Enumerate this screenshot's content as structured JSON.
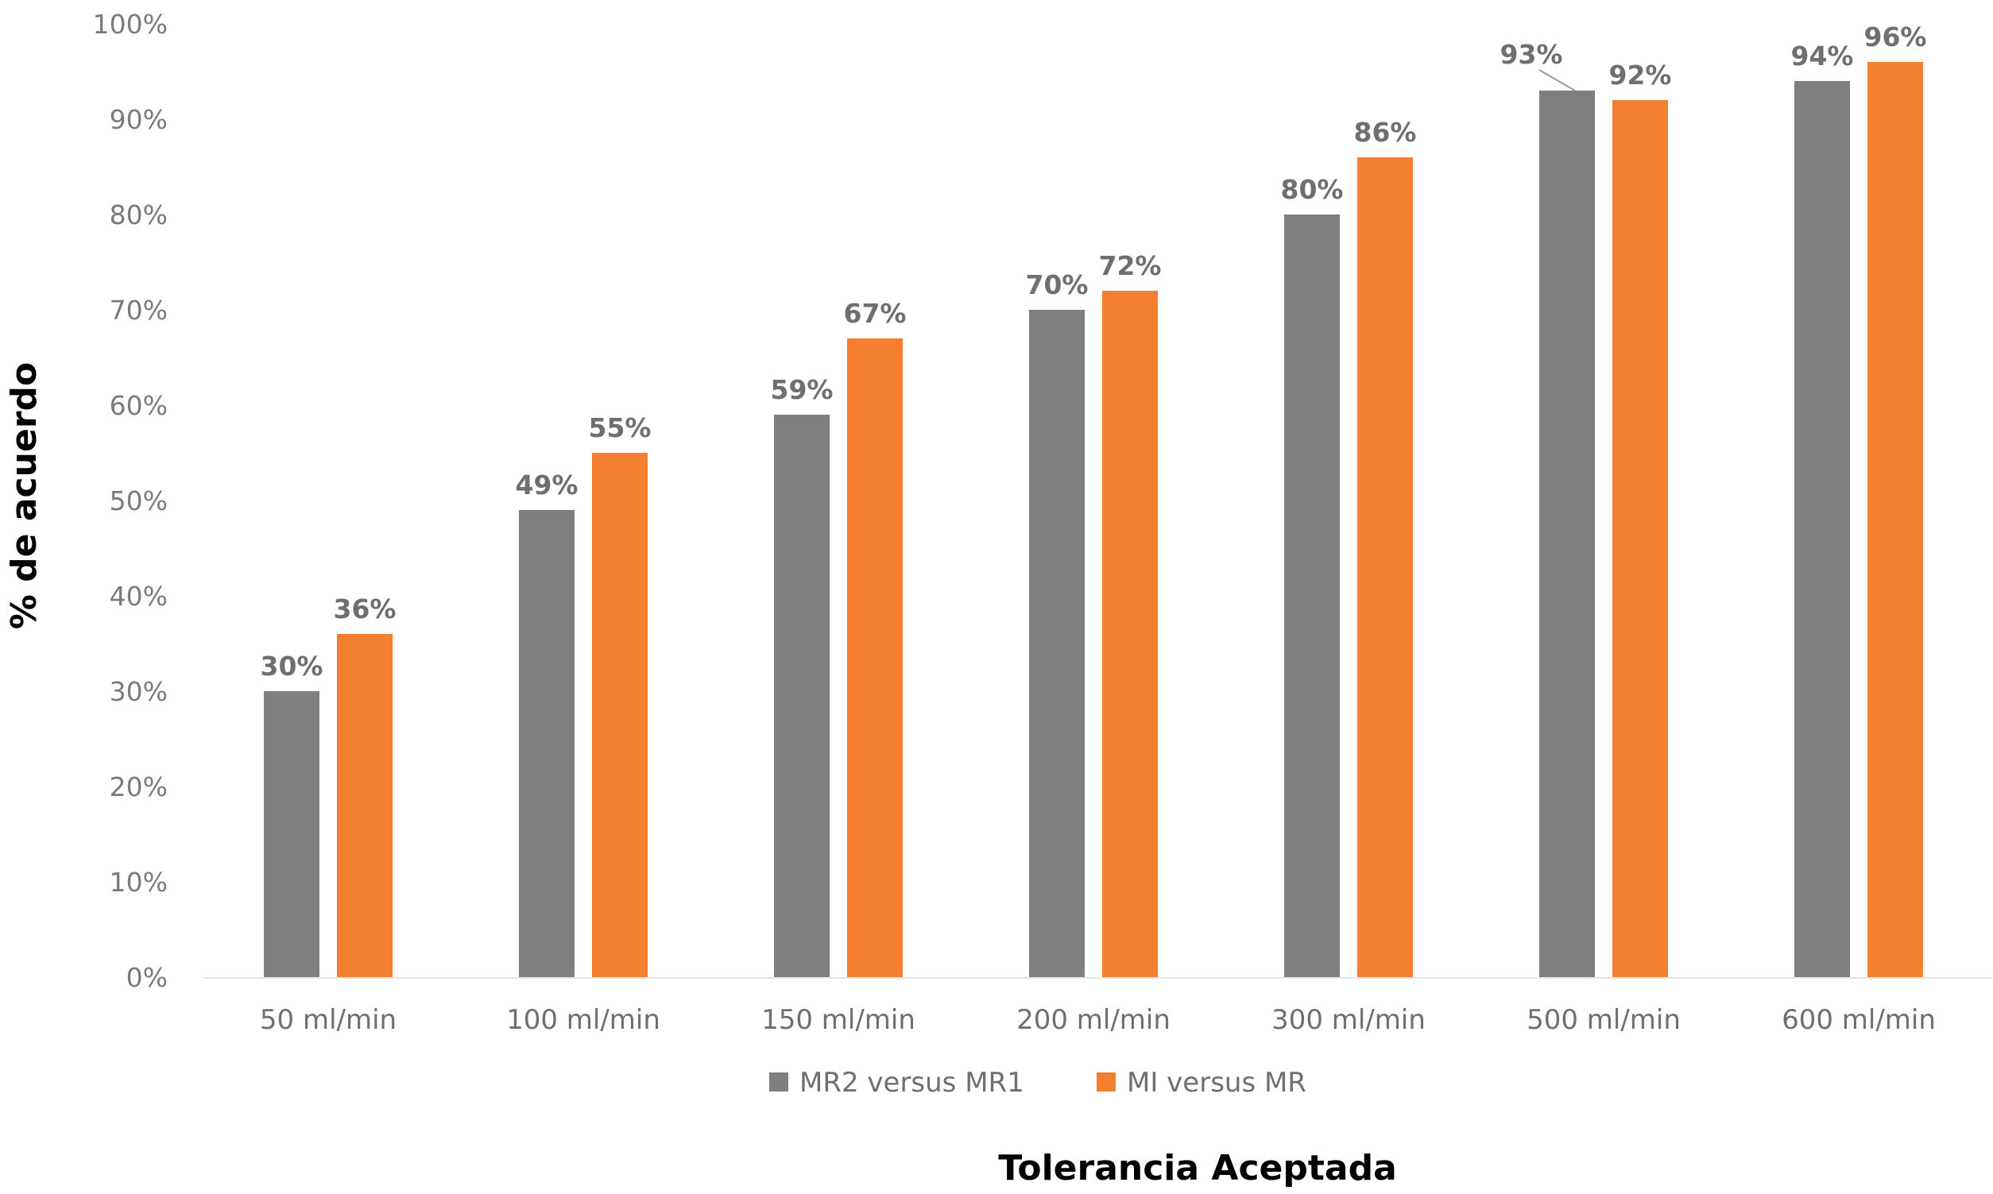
{
  "chart_data": {
    "type": "bar",
    "title": "",
    "xlabel": "Tolerancia Aceptada",
    "ylabel": "% de acuerdo",
    "ylim": [
      0,
      100
    ],
    "yticks": [
      "0%",
      "10%",
      "20%",
      "30%",
      "40%",
      "50%",
      "60%",
      "70%",
      "80%",
      "90%",
      "100%"
    ],
    "grid": false,
    "legend_position": "bottom",
    "categories": [
      "50 ml/min",
      "100 ml/min",
      "150 ml/min",
      "200 ml/min",
      "300 ml/min",
      "500 ml/min",
      "600 ml/min"
    ],
    "series": [
      {
        "name": "MR2 versus MR1",
        "color": "#7f7f7f",
        "values": [
          30,
          49,
          59,
          70,
          80,
          93,
          94
        ],
        "labels": [
          "30%",
          "49%",
          "59%",
          "70%",
          "80%",
          "93%",
          "94%"
        ]
      },
      {
        "name": "MI versus MR",
        "color": "#f47f30",
        "values": [
          36,
          55,
          67,
          72,
          86,
          92,
          96
        ],
        "labels": [
          "36%",
          "55%",
          "67%",
          "72%",
          "86%",
          "92%",
          "96%"
        ]
      }
    ]
  }
}
